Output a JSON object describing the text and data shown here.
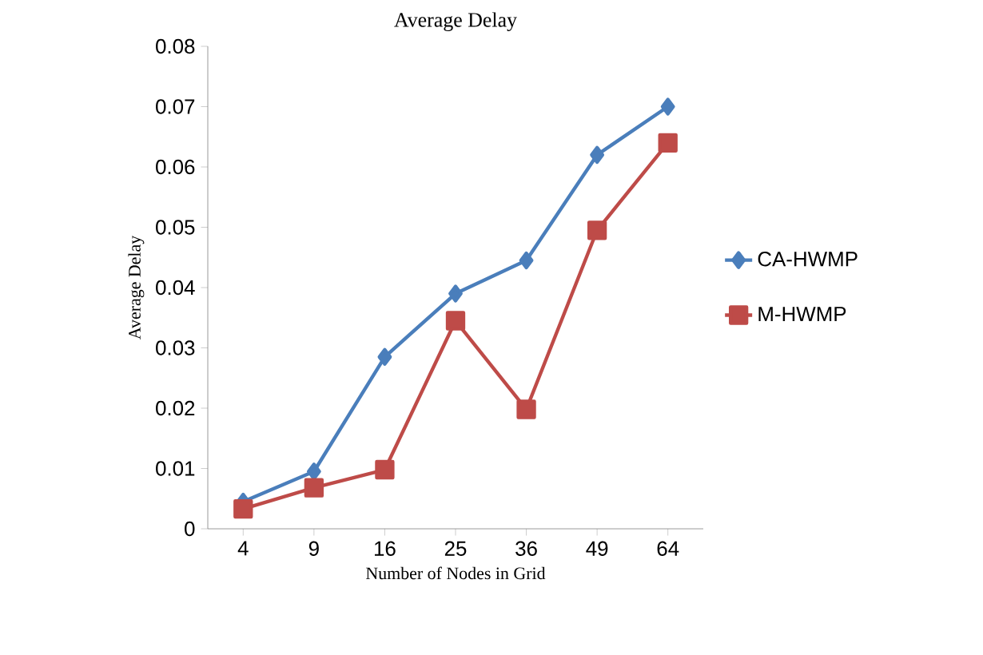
{
  "chart_data": {
    "type": "line",
    "title": "Average Delay",
    "xlabel": "Number of Nodes in Grid",
    "ylabel": "Average Delay",
    "categories": [
      "4",
      "9",
      "16",
      "25",
      "36",
      "49",
      "64"
    ],
    "series": [
      {
        "name": "CA-HWMP",
        "color": "#4a7ebb",
        "marker": "diamond",
        "values": [
          0.0045,
          0.0095,
          0.0285,
          0.039,
          0.0445,
          0.062,
          0.07
        ]
      },
      {
        "name": "M-HWMP",
        "color": "#be4b48",
        "marker": "square",
        "values": [
          0.0033,
          0.0068,
          0.0098,
          0.0345,
          0.0198,
          0.0495,
          0.064
        ]
      }
    ],
    "ylim": [
      0,
      0.08
    ],
    "yticks": [
      0,
      0.01,
      0.02,
      0.03,
      0.04,
      0.05,
      0.06,
      0.07,
      0.08
    ],
    "grid": false,
    "legend": "right",
    "line_style": "solid"
  }
}
